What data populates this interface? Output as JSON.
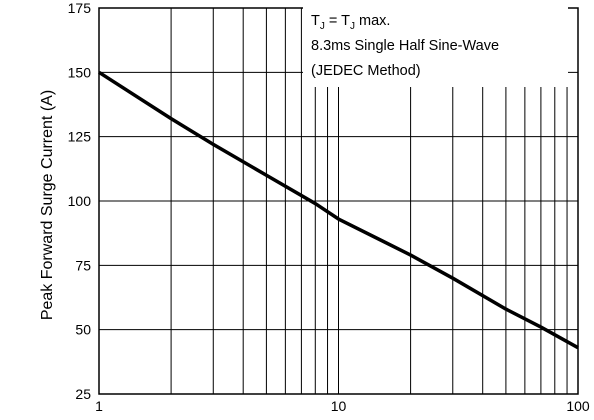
{
  "chart_data": {
    "type": "line",
    "xscale": "log",
    "xlim": [
      1,
      100
    ],
    "ylim": [
      25,
      175
    ],
    "ylabel": "Peak Forward Surge Current (A)",
    "xlabel": "",
    "grid": true,
    "x_ticks": [
      "1",
      "10",
      "100"
    ],
    "y_ticks": [
      "25",
      "50",
      "75",
      "100",
      "125",
      "150",
      "175"
    ],
    "series": [
      {
        "x": [
          1,
          2,
          3,
          5,
          8,
          10,
          20,
          30,
          50,
          70,
          100
        ],
        "y": [
          150,
          132,
          122,
          110,
          99,
          93,
          79,
          70,
          58,
          51,
          43
        ]
      }
    ],
    "annotation": {
      "line1_sub": "J",
      "line1_mid": " = T",
      "line1_end": " max.",
      "line1_t": "T",
      "line2": "8.3ms Single Half Sine-Wave",
      "line3": "(JEDEC Method)"
    },
    "line_color": "#000000",
    "grid_color": "#000000"
  }
}
